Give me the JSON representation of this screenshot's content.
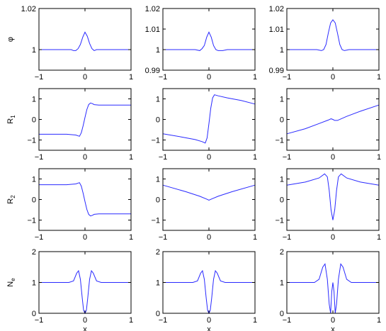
{
  "colors": {
    "line": "#2a2aff",
    "axes": "#000000"
  },
  "chart_data": [
    {
      "type": "line",
      "ylabel": "φ",
      "xlabel": "",
      "xlim": [
        -1,
        1
      ],
      "ylim": [
        0.99,
        1.02
      ],
      "xticks": [
        "−1",
        "0",
        "1"
      ],
      "yticks": [
        {
          "v": 1,
          "t": "1"
        },
        {
          "v": 1.02,
          "t": "1.02"
        }
      ],
      "x": [
        -1,
        -0.3,
        -0.25,
        -0.2,
        -0.15,
        -0.1,
        -0.05,
        0,
        0.05,
        0.1,
        0.15,
        0.2,
        0.25,
        0.3,
        0.4,
        1
      ],
      "y": [
        1.0,
        1.0,
        0.9995,
        0.9995,
        1.0005,
        1.0025,
        1.006,
        1.0085,
        1.0065,
        1.003,
        1.0005,
        0.9995,
        1.0,
        1.0,
        1.0,
        1.0
      ]
    },
    {
      "type": "line",
      "ylabel": "",
      "xlabel": "",
      "xlim": [
        -1,
        1
      ],
      "ylim": [
        0.99,
        1.02
      ],
      "xticks": [
        "−1",
        "0",
        "1"
      ],
      "yticks": [
        {
          "v": 0.99,
          "t": "0.99"
        },
        {
          "v": 1,
          "t": "1"
        },
        {
          "v": 1.01,
          "t": "1.01"
        },
        {
          "v": 1.02,
          "t": "1.02"
        }
      ],
      "x": [
        -1,
        -0.3,
        -0.2,
        -0.15,
        -0.1,
        -0.05,
        0,
        0.05,
        0.1,
        0.15,
        0.2,
        0.3,
        0.4,
        1
      ],
      "y": [
        1.0,
        1.0,
        0.9995,
        1.0005,
        1.002,
        1.006,
        1.0085,
        1.006,
        1.002,
        1.0,
        0.9995,
        0.9995,
        1.0,
        1.0
      ]
    },
    {
      "type": "line",
      "ylabel": "",
      "xlabel": "",
      "xlim": [
        -1,
        1
      ],
      "ylim": [
        0.99,
        1.02
      ],
      "xticks": [
        "−1",
        "0",
        "1"
      ],
      "yticks": [
        {
          "v": 0.99,
          "t": "0.99"
        },
        {
          "v": 1,
          "t": "1"
        },
        {
          "v": 1.01,
          "t": "1.01"
        },
        {
          "v": 1.02,
          "t": "1.02"
        }
      ],
      "x": [
        -1,
        -0.35,
        -0.25,
        -0.2,
        -0.15,
        -0.1,
        -0.05,
        0,
        0.05,
        0.1,
        0.15,
        0.2,
        0.25,
        0.35,
        0.45,
        1
      ],
      "y": [
        1.0,
        1.0,
        0.9995,
        1.0,
        1.0025,
        1.008,
        1.013,
        1.0145,
        1.013,
        1.008,
        1.0025,
        1.0,
        0.9995,
        1.0,
        1.0,
        1.0
      ]
    },
    {
      "type": "line",
      "ylabel": "R",
      "ylabel_sub": "1",
      "xlabel": "",
      "xlim": [
        -1,
        1
      ],
      "ylim": [
        -1.5,
        1.5
      ],
      "xticks": [
        "−1",
        "0",
        "1"
      ],
      "yticks": [
        {
          "v": -1,
          "t": "−1"
        },
        {
          "v": 0,
          "t": "0"
        },
        {
          "v": 1,
          "t": "1"
        }
      ],
      "x": [
        -1,
        -0.4,
        -0.2,
        -0.12,
        -0.08,
        -0.04,
        0,
        0.04,
        0.08,
        0.12,
        0.16,
        0.2,
        0.3,
        0.5,
        1
      ],
      "y": [
        -0.72,
        -0.72,
        -0.76,
        -0.82,
        -0.65,
        -0.3,
        0.1,
        0.48,
        0.72,
        0.8,
        0.77,
        0.72,
        0.7,
        0.7,
        0.7
      ]
    },
    {
      "type": "line",
      "ylabel": "",
      "xlabel": "",
      "xlim": [
        -1,
        1
      ],
      "ylim": [
        -1.5,
        1.5
      ],
      "xticks": [
        "−1",
        "0",
        "1"
      ],
      "yticks": [
        {
          "v": -1,
          "t": "−1"
        },
        {
          "v": 0,
          "t": "0"
        },
        {
          "v": 1,
          "t": "1"
        }
      ],
      "x": [
        -1,
        -0.6,
        -0.3,
        -0.15,
        -0.08,
        -0.04,
        0,
        0.04,
        0.08,
        0.12,
        0.2,
        0.4,
        0.7,
        1
      ],
      "y": [
        -0.7,
        -0.85,
        -0.98,
        -1.08,
        -1.15,
        -0.9,
        -0.2,
        0.55,
        1.05,
        1.2,
        1.15,
        1.05,
        0.92,
        0.75
      ]
    },
    {
      "type": "line",
      "ylabel": "",
      "xlabel": "",
      "xlim": [
        -1,
        1
      ],
      "ylim": [
        -1.5,
        1.5
      ],
      "xticks": [
        "−1",
        "0",
        "1"
      ],
      "yticks": [
        {
          "v": -1,
          "t": "−1"
        },
        {
          "v": 0,
          "t": "0"
        },
        {
          "v": 1,
          "t": "1"
        }
      ],
      "x": [
        -1,
        -0.6,
        -0.3,
        -0.1,
        -0.04,
        0,
        0.04,
        0.1,
        0.3,
        0.6,
        1
      ],
      "y": [
        -0.7,
        -0.45,
        -0.2,
        -0.03,
        0.03,
        0.0,
        -0.05,
        -0.05,
        0.15,
        0.4,
        0.7
      ]
    },
    {
      "type": "line",
      "ylabel": "R",
      "ylabel_sub": "2",
      "xlabel": "",
      "xlim": [
        -1,
        1
      ],
      "ylim": [
        -1.5,
        1.5
      ],
      "xticks": [
        "−1",
        "0",
        "1"
      ],
      "yticks": [
        {
          "v": -1,
          "t": "−1"
        },
        {
          "v": 0,
          "t": "0"
        },
        {
          "v": 1,
          "t": "1"
        }
      ],
      "x": [
        -1,
        -0.4,
        -0.2,
        -0.12,
        -0.08,
        -0.04,
        0,
        0.04,
        0.08,
        0.12,
        0.16,
        0.2,
        0.3,
        0.5,
        1
      ],
      "y": [
        0.72,
        0.72,
        0.76,
        0.82,
        0.65,
        0.3,
        -0.1,
        -0.48,
        -0.72,
        -0.8,
        -0.77,
        -0.72,
        -0.7,
        -0.7,
        -0.7
      ]
    },
    {
      "type": "line",
      "ylabel": "",
      "xlabel": "",
      "xlim": [
        -1,
        1
      ],
      "ylim": [
        -1.5,
        1.5
      ],
      "xticks": [
        "−1",
        "0",
        "1"
      ],
      "yticks": [
        {
          "v": -1,
          "t": "−1"
        },
        {
          "v": 0,
          "t": "0"
        },
        {
          "v": 1,
          "t": "1"
        }
      ],
      "x": [
        -1,
        -0.5,
        -0.2,
        -0.05,
        0,
        0.05,
        0.2,
        0.5,
        1
      ],
      "y": [
        0.7,
        0.38,
        0.16,
        0.02,
        -0.03,
        0.02,
        0.16,
        0.38,
        0.7
      ]
    },
    {
      "type": "line",
      "ylabel": "",
      "xlabel": "",
      "xlim": [
        -1,
        1
      ],
      "ylim": [
        -1.5,
        1.5
      ],
      "xticks": [
        "−1",
        "0",
        "1"
      ],
      "yticks": [
        {
          "v": -1,
          "t": "−1"
        },
        {
          "v": 0,
          "t": "0"
        },
        {
          "v": 1,
          "t": "1"
        }
      ],
      "x": [
        -1,
        -0.6,
        -0.3,
        -0.18,
        -0.12,
        -0.08,
        -0.04,
        0,
        0.04,
        0.08,
        0.12,
        0.18,
        0.3,
        0.6,
        1
      ],
      "y": [
        0.7,
        0.85,
        1.05,
        1.25,
        1.1,
        0.45,
        -0.5,
        -1.0,
        -0.5,
        0.45,
        1.1,
        1.25,
        1.05,
        0.85,
        0.7
      ]
    },
    {
      "type": "line",
      "ylabel": "N",
      "ylabel_sub": "e",
      "xlabel": "x",
      "xlim": [
        -1,
        1
      ],
      "ylim": [
        0,
        2
      ],
      "xticks": [
        "−1",
        "0",
        "1"
      ],
      "yticks": [
        {
          "v": 0,
          "t": "0"
        },
        {
          "v": 1,
          "t": "1"
        },
        {
          "v": 2,
          "t": "2"
        }
      ],
      "x": [
        -1,
        -0.35,
        -0.25,
        -0.18,
        -0.14,
        -0.1,
        -0.06,
        -0.03,
        0,
        0.03,
        0.06,
        0.1,
        0.14,
        0.18,
        0.25,
        0.35,
        1
      ],
      "y": [
        1.0,
        1.0,
        1.05,
        1.3,
        1.38,
        1.1,
        0.5,
        0.1,
        0.0,
        0.1,
        0.5,
        1.1,
        1.38,
        1.3,
        1.05,
        1.0,
        1.0
      ]
    },
    {
      "type": "line",
      "ylabel": "",
      "xlabel": "x",
      "xlim": [
        -1,
        1
      ],
      "ylim": [
        0,
        2
      ],
      "xticks": [
        "−1",
        "0",
        "1"
      ],
      "yticks": [
        {
          "v": 0,
          "t": "0"
        },
        {
          "v": 1,
          "t": "1"
        },
        {
          "v": 2,
          "t": "2"
        }
      ],
      "x": [
        -1,
        -0.35,
        -0.25,
        -0.18,
        -0.14,
        -0.1,
        -0.06,
        -0.03,
        0,
        0.03,
        0.06,
        0.1,
        0.14,
        0.18,
        0.25,
        0.35,
        1
      ],
      "y": [
        1.0,
        1.0,
        1.05,
        1.3,
        1.38,
        1.1,
        0.5,
        0.1,
        0.0,
        0.1,
        0.5,
        1.1,
        1.38,
        1.3,
        1.05,
        1.0,
        1.0
      ]
    },
    {
      "type": "line",
      "ylabel": "",
      "xlabel": "x",
      "xlim": [
        -1,
        1
      ],
      "ylim": [
        0,
        2
      ],
      "xticks": [
        "−1",
        "0",
        "1"
      ],
      "yticks": [
        {
          "v": 0,
          "t": "0"
        },
        {
          "v": 1,
          "t": "1"
        },
        {
          "v": 2,
          "t": "2"
        }
      ],
      "x": [
        -1,
        -0.4,
        -0.3,
        -0.22,
        -0.17,
        -0.12,
        -0.08,
        -0.05,
        -0.025,
        0,
        0.025,
        0.05,
        0.08,
        0.12,
        0.17,
        0.22,
        0.3,
        0.4,
        1
      ],
      "y": [
        1.0,
        1.0,
        1.1,
        1.5,
        1.6,
        1.1,
        0.3,
        0.0,
        0.7,
        1.0,
        0.7,
        0.0,
        0.3,
        1.1,
        1.6,
        1.5,
        1.1,
        1.0,
        1.0
      ]
    }
  ]
}
